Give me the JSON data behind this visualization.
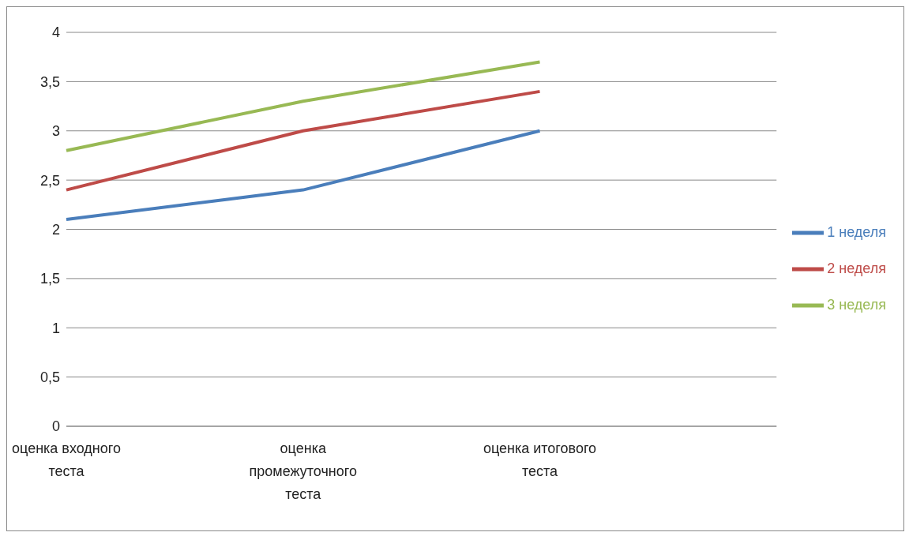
{
  "chart_data": {
    "type": "line",
    "categories": [
      "оценка входного теста",
      "оценка промежуточного теста",
      "оценка итогового теста",
      null
    ],
    "series": [
      {
        "name": "1 неделя",
        "color": "#4a7ebb",
        "values": [
          2.1,
          2.4,
          3.0,
          null
        ]
      },
      {
        "name": "2 неделя",
        "color": "#be4b48",
        "values": [
          2.4,
          3.0,
          3.4,
          null
        ]
      },
      {
        "name": "3 неделя",
        "color": "#98b954",
        "values": [
          2.8,
          3.3,
          3.7,
          null
        ]
      }
    ],
    "ylim": [
      0,
      4
    ],
    "yticks": [
      0,
      {
        "value": 0.5,
        "label": "0,5"
      },
      1,
      {
        "value": 1.5,
        "label": "1,5"
      },
      2,
      {
        "value": 2.5,
        "label": "2,5"
      },
      3,
      {
        "value": 3.5,
        "label": "3,5"
      },
      4
    ],
    "grid": "y",
    "legend": "right",
    "marker": "none",
    "line_style": "solid"
  }
}
